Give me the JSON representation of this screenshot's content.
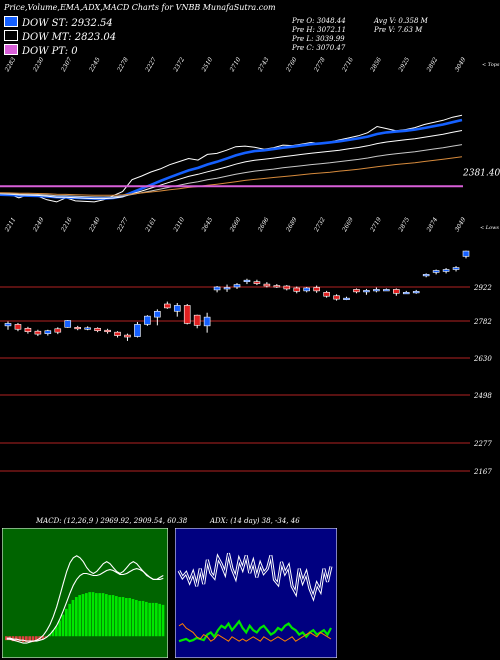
{
  "header": {
    "title": "Price,Volume,EMA,ADX,MACD Charts for VNBB MunafaSutra.com"
  },
  "legend": [
    {
      "label": "DOW ST: 2932.54",
      "color": "#1560ff"
    },
    {
      "label": "DOW MT: 2823.04",
      "color": "#000000"
    },
    {
      "label": "DOW PT: 0",
      "color": "#d75fd7"
    }
  ],
  "stats": {
    "pre_o": "Pre  O: 3048.44",
    "pre_h": "Pre  H: 3072.11",
    "pre_l": "Pre  L: 3039.99",
    "pre_c": "Pre  C: 3070.47",
    "avg_v": "Avg V: 0.358 M",
    "pre_v": "Pre  V: 7.63 M"
  },
  "chart_data": [
    {
      "type": "line",
      "panel": "price-ema",
      "top_axis_ticks": [
        "2283",
        "2230",
        "2307",
        "2245",
        "2278",
        "2227",
        "2372",
        "2510",
        "2710",
        "2743",
        "2760",
        "2778",
        "2716",
        "2856",
        "2925",
        "2892",
        "3049"
      ],
      "top_axis_label": "< Tops",
      "right_value_label": "2381.40",
      "series": [
        {
          "color": "#ffffff",
          "values": [
            2310,
            2305,
            2270,
            2300,
            2285,
            2250,
            2230,
            2270,
            2240,
            2235,
            2230,
            2250,
            2290,
            2330,
            2445,
            2480,
            2520,
            2550,
            2590,
            2620,
            2650,
            2635,
            2690,
            2700,
            2730,
            2765,
            2770,
            2760,
            2740,
            2755,
            2780,
            2775,
            2790,
            2805,
            2795,
            2810,
            2830,
            2850,
            2870,
            2900,
            2960,
            2940,
            2920,
            2930,
            2950,
            2980,
            3000,
            3020,
            3050,
            3070
          ]
        },
        {
          "color": "#1560ff",
          "values": [
            2300,
            2298,
            2292,
            2290,
            2288,
            2282,
            2276,
            2274,
            2270,
            2266,
            2262,
            2262,
            2268,
            2284,
            2322,
            2358,
            2395,
            2432,
            2468,
            2502,
            2535,
            2559,
            2592,
            2618,
            2648,
            2680,
            2705,
            2722,
            2730,
            2741,
            2755,
            2765,
            2777,
            2789,
            2797,
            2806,
            2817,
            2830,
            2845,
            2862,
            2888,
            2903,
            2911,
            2919,
            2930,
            2946,
            2963,
            2980,
            3002,
            3023
          ]
        },
        {
          "color": "#ffffff",
          "values": [
            2308,
            2306,
            2298,
            2296,
            2293,
            2286,
            2276,
            2275,
            2270,
            2266,
            2262,
            2262,
            2267,
            2278,
            2308,
            2335,
            2364,
            2392,
            2421,
            2449,
            2477,
            2497,
            2522,
            2544,
            2568,
            2595,
            2617,
            2633,
            2643,
            2654,
            2667,
            2678,
            2690,
            2701,
            2710,
            2720,
            2731,
            2744,
            2757,
            2773,
            2795,
            2810,
            2821,
            2831,
            2842,
            2857,
            2871,
            2886,
            2904,
            2921
          ]
        },
        {
          "color": "#c8c8c8",
          "values": [
            2312,
            2311,
            2306,
            2304,
            2302,
            2297,
            2290,
            2289,
            2285,
            2281,
            2278,
            2277,
            2279,
            2285,
            2302,
            2318,
            2336,
            2354,
            2373,
            2392,
            2411,
            2426,
            2444,
            2460,
            2478,
            2497,
            2514,
            2528,
            2538,
            2548,
            2560,
            2570,
            2581,
            2591,
            2600,
            2609,
            2620,
            2631,
            2642,
            2655,
            2672,
            2685,
            2696,
            2706,
            2716,
            2729,
            2742,
            2755,
            2770,
            2785
          ]
        },
        {
          "color": "#d68a3c",
          "values": [
            2318,
            2317,
            2314,
            2313,
            2311,
            2308,
            2304,
            2303,
            2300,
            2297,
            2295,
            2294,
            2295,
            2298,
            2307,
            2316,
            2326,
            2336,
            2347,
            2358,
            2370,
            2379,
            2391,
            2401,
            2413,
            2426,
            2438,
            2448,
            2457,
            2466,
            2475,
            2484,
            2493,
            2502,
            2510,
            2518,
            2528,
            2537,
            2547,
            2558,
            2571,
            2582,
            2592,
            2601,
            2610,
            2621,
            2632,
            2643,
            2655,
            2667
          ]
        }
      ],
      "dow_pt_line": 2381.4
    },
    {
      "type": "candlestick",
      "panel": "price",
      "bottom_axis_ticks": [
        "2211",
        "2249",
        "2216",
        "2240",
        "2277",
        "2161",
        "2310",
        "2645",
        "2660",
        "2696",
        "2689",
        "2732",
        "2669",
        "2719",
        "2875",
        "2874",
        "3049"
      ],
      "bottom_axis_label": "< Lows",
      "y_levels": [
        2922,
        2782,
        2630,
        2498,
        2277,
        2167
      ],
      "candles": [
        {
          "o": 2772,
          "h": 2780,
          "l": 2746,
          "c": 2762,
          "up": true
        },
        {
          "o": 2768,
          "h": 2774,
          "l": 2740,
          "c": 2748,
          "up": false
        },
        {
          "o": 2752,
          "h": 2758,
          "l": 2730,
          "c": 2738,
          "up": false
        },
        {
          "o": 2740,
          "h": 2746,
          "l": 2720,
          "c": 2728,
          "up": false
        },
        {
          "o": 2730,
          "h": 2746,
          "l": 2722,
          "c": 2742,
          "up": true
        },
        {
          "o": 2750,
          "h": 2756,
          "l": 2728,
          "c": 2736,
          "up": false
        },
        {
          "o": 2756,
          "h": 2786,
          "l": 2754,
          "c": 2784,
          "up": true
        },
        {
          "o": 2756,
          "h": 2762,
          "l": 2744,
          "c": 2750,
          "up": false
        },
        {
          "o": 2754,
          "h": 2760,
          "l": 2744,
          "c": 2752,
          "up": true
        },
        {
          "o": 2752,
          "h": 2756,
          "l": 2736,
          "c": 2742,
          "up": false
        },
        {
          "o": 2744,
          "h": 2750,
          "l": 2730,
          "c": 2738,
          "up": false
        },
        {
          "o": 2736,
          "h": 2740,
          "l": 2714,
          "c": 2722,
          "up": false
        },
        {
          "o": 2724,
          "h": 2730,
          "l": 2700,
          "c": 2716,
          "up": false
        },
        {
          "o": 2718,
          "h": 2778,
          "l": 2714,
          "c": 2768,
          "up": true
        },
        {
          "o": 2768,
          "h": 2806,
          "l": 2762,
          "c": 2802,
          "up": true
        },
        {
          "o": 2798,
          "h": 2830,
          "l": 2764,
          "c": 2822,
          "up": true
        },
        {
          "o": 2836,
          "h": 2862,
          "l": 2832,
          "c": 2852,
          "up": false
        },
        {
          "o": 2822,
          "h": 2856,
          "l": 2800,
          "c": 2846,
          "up": true
        },
        {
          "o": 2846,
          "h": 2852,
          "l": 2768,
          "c": 2772,
          "up": false
        },
        {
          "o": 2764,
          "h": 2808,
          "l": 2752,
          "c": 2806,
          "up": false
        },
        {
          "o": 2762,
          "h": 2816,
          "l": 2734,
          "c": 2798,
          "up": true
        },
        {
          "o": 2910,
          "h": 2926,
          "l": 2900,
          "c": 2922,
          "up": true
        },
        {
          "o": 2914,
          "h": 2932,
          "l": 2902,
          "c": 2920,
          "up": true
        },
        {
          "o": 2922,
          "h": 2938,
          "l": 2914,
          "c": 2932,
          "up": true
        },
        {
          "o": 2944,
          "h": 2956,
          "l": 2934,
          "c": 2950,
          "up": true
        },
        {
          "o": 2944,
          "h": 2952,
          "l": 2930,
          "c": 2936,
          "up": false
        },
        {
          "o": 2934,
          "h": 2942,
          "l": 2920,
          "c": 2926,
          "up": false
        },
        {
          "o": 2928,
          "h": 2934,
          "l": 2918,
          "c": 2924,
          "up": false
        },
        {
          "o": 2926,
          "h": 2930,
          "l": 2908,
          "c": 2914,
          "up": false
        },
        {
          "o": 2918,
          "h": 2924,
          "l": 2896,
          "c": 2904,
          "up": false
        },
        {
          "o": 2906,
          "h": 2922,
          "l": 2900,
          "c": 2918,
          "up": true
        },
        {
          "o": 2920,
          "h": 2928,
          "l": 2898,
          "c": 2906,
          "up": false
        },
        {
          "o": 2900,
          "h": 2906,
          "l": 2878,
          "c": 2884,
          "up": false
        },
        {
          "o": 2886,
          "h": 2892,
          "l": 2866,
          "c": 2872,
          "up": false
        },
        {
          "o": 2876,
          "h": 2882,
          "l": 2868,
          "c": 2874,
          "up": true
        },
        {
          "o": 2902,
          "h": 2916,
          "l": 2896,
          "c": 2912,
          "up": false
        },
        {
          "o": 2906,
          "h": 2914,
          "l": 2890,
          "c": 2908,
          "up": true
        },
        {
          "o": 2906,
          "h": 2920,
          "l": 2900,
          "c": 2912,
          "up": true
        },
        {
          "o": 2912,
          "h": 2916,
          "l": 2908,
          "c": 2910,
          "up": true
        },
        {
          "o": 2912,
          "h": 2916,
          "l": 2886,
          "c": 2896,
          "up": false
        },
        {
          "o": 2900,
          "h": 2906,
          "l": 2894,
          "c": 2900,
          "up": true
        },
        {
          "o": 2902,
          "h": 2910,
          "l": 2894,
          "c": 2904,
          "up": true
        },
        {
          "o": 2968,
          "h": 2978,
          "l": 2962,
          "c": 2974,
          "up": true
        },
        {
          "o": 2982,
          "h": 2994,
          "l": 2974,
          "c": 2990,
          "up": true
        },
        {
          "o": 2986,
          "h": 3000,
          "l": 2978,
          "c": 2994,
          "up": true
        },
        {
          "o": 2994,
          "h": 3008,
          "l": 2986,
          "c": 3002,
          "up": true
        },
        {
          "o": 3048,
          "h": 3072,
          "l": 3040,
          "c": 3070,
          "up": true
        }
      ]
    },
    {
      "type": "bar",
      "panel": "macd",
      "title": "MACD: (12,26,9 ) 2969.92, 2909.54, 60.38",
      "histogram": [
        -4,
        -4,
        -5,
        -5,
        -5,
        -6,
        -6,
        -6,
        -6,
        -5,
        -4,
        -3,
        -1,
        2,
        6,
        10,
        16,
        22,
        28,
        33,
        37,
        40,
        42,
        43,
        44,
        45,
        45,
        44,
        44,
        44,
        43,
        42,
        42,
        41,
        40,
        40,
        39,
        39,
        38,
        37,
        36,
        36,
        35,
        34,
        34,
        34,
        33,
        32
      ],
      "macd_line": [
        -3,
        -3,
        -4,
        -5,
        -6,
        -7,
        -7,
        -6,
        -5,
        -4,
        -2,
        1,
        6,
        12,
        20,
        30,
        42,
        54,
        66,
        75,
        80,
        82,
        80,
        76,
        70,
        66,
        64,
        66,
        70,
        74,
        76,
        74,
        70,
        66,
        64,
        66,
        70,
        74,
        76,
        74,
        70,
        66,
        62,
        60,
        58,
        58,
        60,
        62
      ],
      "signal_line": [
        -2,
        -2,
        -3,
        -3,
        -4,
        -4,
        -5,
        -5,
        -5,
        -5,
        -4,
        -3,
        -1,
        2,
        6,
        11,
        18,
        26,
        35,
        44,
        52,
        58,
        62,
        64,
        64,
        63,
        62,
        62,
        63,
        65,
        67,
        68,
        67,
        65,
        63,
        63,
        64,
        66,
        68,
        69,
        68,
        66,
        63,
        60,
        58,
        58,
        58,
        59
      ],
      "ylim": [
        -12,
        90
      ]
    },
    {
      "type": "line",
      "panel": "adx",
      "title": "ADX: (14 day) 38, -34, 46",
      "series": [
        {
          "name": "ADX",
          "color": "#ffffff",
          "values": [
            72,
            66,
            70,
            62,
            70,
            58,
            74,
            60,
            82,
            70,
            66,
            84,
            78,
            70,
            88,
            74,
            66,
            82,
            74,
            86,
            70,
            80,
            66,
            78,
            70,
            74,
            86,
            64,
            60,
            80,
            70,
            76,
            58,
            52,
            74,
            62,
            70,
            56,
            48,
            60,
            54,
            74,
            62,
            76
          ]
        },
        {
          "name": "+DI",
          "color": "#00e600",
          "values": [
            8,
            9,
            10,
            8,
            9,
            11,
            10,
            9,
            14,
            16,
            12,
            18,
            22,
            20,
            24,
            18,
            22,
            26,
            20,
            16,
            22,
            18,
            16,
            20,
            22,
            18,
            14,
            16,
            20,
            18,
            22,
            24,
            20,
            18,
            14,
            16,
            12,
            16,
            18,
            14,
            16,
            18,
            14,
            20
          ]
        },
        {
          "name": "-DI",
          "color": "#ff7f00",
          "values": [
            22,
            24,
            20,
            18,
            16,
            12,
            10,
            14,
            12,
            8,
            10,
            14,
            12,
            10,
            8,
            12,
            10,
            8,
            10,
            8,
            10,
            12,
            10,
            8,
            12,
            10,
            8,
            10,
            12,
            10,
            8,
            10,
            12,
            8,
            10,
            12,
            14,
            16,
            14,
            12,
            16,
            14,
            12,
            10
          ]
        }
      ],
      "ylim": [
        0,
        100
      ]
    }
  ]
}
